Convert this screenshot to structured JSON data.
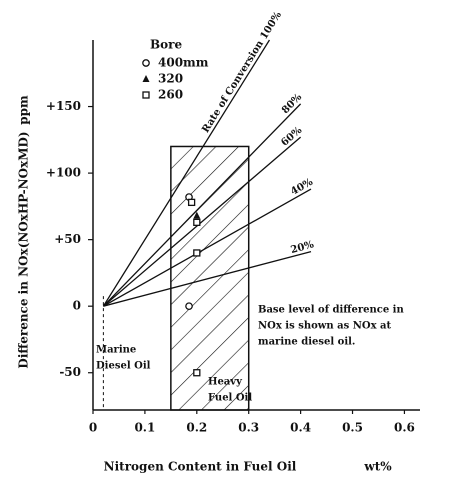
{
  "chart_data": {
    "type": "line",
    "y_label": "Difference in NOx(NOxHP-NOxMD)",
    "y_unit": "ppm",
    "x_label": "Nitrogen Content in Fuel Oil",
    "x_unit": "wt%",
    "xlim": [
      0,
      0.63
    ],
    "ylim": [
      -78,
      200
    ],
    "xticks": [
      0,
      0.1,
      0.2,
      0.3,
      0.4,
      0.5,
      0.6
    ],
    "yticks": [
      -50,
      0,
      {
        "value": 50,
        "label": "+50"
      },
      {
        "value": 100,
        "label": "+100"
      },
      {
        "value": 150,
        "label": "+150"
      }
    ],
    "color": "#111111",
    "series": [
      {
        "name": "Rate of Conversion 100%",
        "x": [
          0.02,
          0.34
        ],
        "values": [
          0,
          200
        ]
      },
      {
        "name": "80%",
        "x": [
          0.02,
          0.4
        ],
        "values": [
          0,
          152
        ]
      },
      {
        "name": "60%",
        "x": [
          0.02,
          0.4
        ],
        "values": [
          0,
          127
        ]
      },
      {
        "name": "40%",
        "x": [
          0.02,
          0.42
        ],
        "values": [
          0,
          88
        ]
      },
      {
        "name": "20%",
        "x": [
          0.02,
          0.42
        ],
        "values": [
          0,
          41
        ]
      }
    ],
    "legend_title": "Bore",
    "markers": [
      {
        "name": "400mm",
        "marker": "circle",
        "x": [
          0.185,
          0.185
        ],
        "values": [
          82,
          0
        ]
      },
      {
        "name": "320",
        "marker": "triangle",
        "x": [
          0.2
        ],
        "values": [
          68
        ]
      },
      {
        "name": "260",
        "marker": "square",
        "x": [
          0.19,
          0.2,
          0.2,
          0.2
        ],
        "values": [
          78,
          63,
          40,
          -50
        ]
      }
    ],
    "region": {
      "x": [
        0.15,
        0.3
      ],
      "top": 120
    },
    "annotations": {
      "marine": [
        "Marine",
        "Diesel Oil"
      ],
      "heavy": [
        "Heavy",
        "Fuel Oil"
      ],
      "note": [
        "Base level of difference in",
        "NOx is shown as NOx at",
        "marine diesel oil."
      ]
    }
  }
}
